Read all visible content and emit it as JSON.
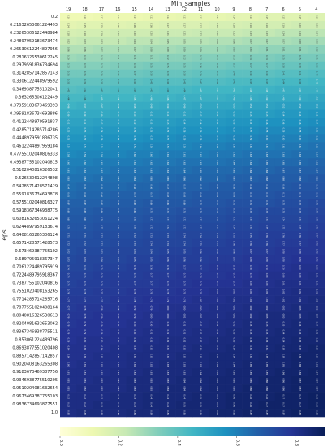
{
  "chart_data": {
    "type": "heatmap",
    "xlabel": "Min_samples",
    "ylabel": "eps",
    "x_categories": [
      "19",
      "18",
      "17",
      "16",
      "15",
      "14",
      "13",
      "12",
      "11",
      "10",
      "9",
      "8",
      "7",
      "6",
      "5",
      "4"
    ],
    "y_categories": [
      "0.2",
      "0.21632653061224493",
      "0.23265306122448984",
      "0.24897959183673474",
      "0.26530612244897956",
      "0.2816326530612245",
      "0.2979591836734694",
      "0.3142857142857143",
      "0.3306122448979592",
      "0.3469387755102041",
      "0.363265306122449",
      "0.37959183673469393",
      "0.39591836734693886",
      "0.4122448979591837",
      "0.4285714285714286",
      "0.4448979591836735",
      "0.4612244897959184",
      "0.47755102040816333",
      "0.49387755102040815",
      "0.5102040816326532",
      "0.526530612244898",
      "0.5428571428571429",
      "0.5591836734693878",
      "0.5755102040816327",
      "0.5918367346938775",
      "0.6081632653061224",
      "0.6244897959183674",
      "0.6408163265306124",
      "0.6571428571428573",
      "0.673469387755102",
      "0.689795918367347",
      "0.7061224489795919",
      "0.7224489795918367",
      "0.7387755102040816",
      "0.7551020408163265",
      "0.7714285714285716",
      "0.7877551020408164",
      "0.8040816326530613",
      "0.8204081632653062",
      "0.8367346938775511",
      "0.853061224489796",
      "0.8693877551020408",
      "0.8857142857142857",
      "0.9020408163265308",
      "0.9183673469387756",
      "0.9346938775510205",
      "0.9510204081632654",
      "0.9673469387755103",
      "0.9836734693877551",
      "1.0"
    ],
    "colorbar": {
      "ticks": [
        "0.0",
        "0.2",
        "0.4",
        "0.6",
        "0.8"
      ],
      "range": [
        0,
        0.9
      ]
    },
    "colormap": [
      "#ffffd9",
      "#edf8b1",
      "#c7e9b4",
      "#7fcdbb",
      "#41b6c4",
      "#1d91c0",
      "#225ea8",
      "#253494",
      "#081d58"
    ],
    "annotation_rotation": "vertical"
  }
}
